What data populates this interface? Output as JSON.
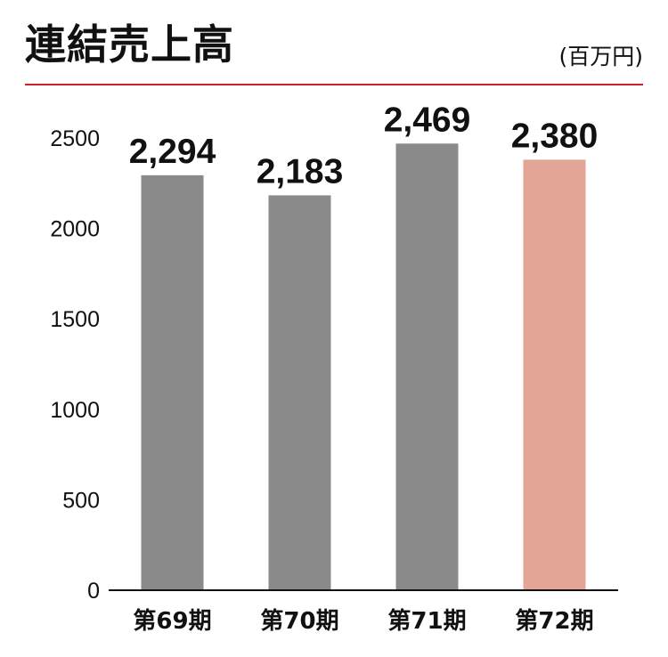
{
  "header": {
    "title": "連結売上高",
    "unit": "(百万円)"
  },
  "colors": {
    "rule": "#d21e2a",
    "bar_default": "#8a8a8a",
    "bar_highlight": "#e2a596",
    "axis": "#111111"
  },
  "chart_data": {
    "type": "bar",
    "title": "連結売上高",
    "unit": "(百万円)",
    "categories": [
      "第69期",
      "第70期",
      "第71期",
      "第72期"
    ],
    "values": [
      2294,
      2183,
      2469,
      2380
    ],
    "value_labels": [
      "2,294",
      "2,183",
      "2,469",
      "2,380"
    ],
    "highlight_index": 3,
    "ylim": [
      0,
      2500
    ],
    "yticks": [
      0,
      500,
      1000,
      1500,
      2000,
      2500
    ],
    "grid": false,
    "legend": "none"
  }
}
